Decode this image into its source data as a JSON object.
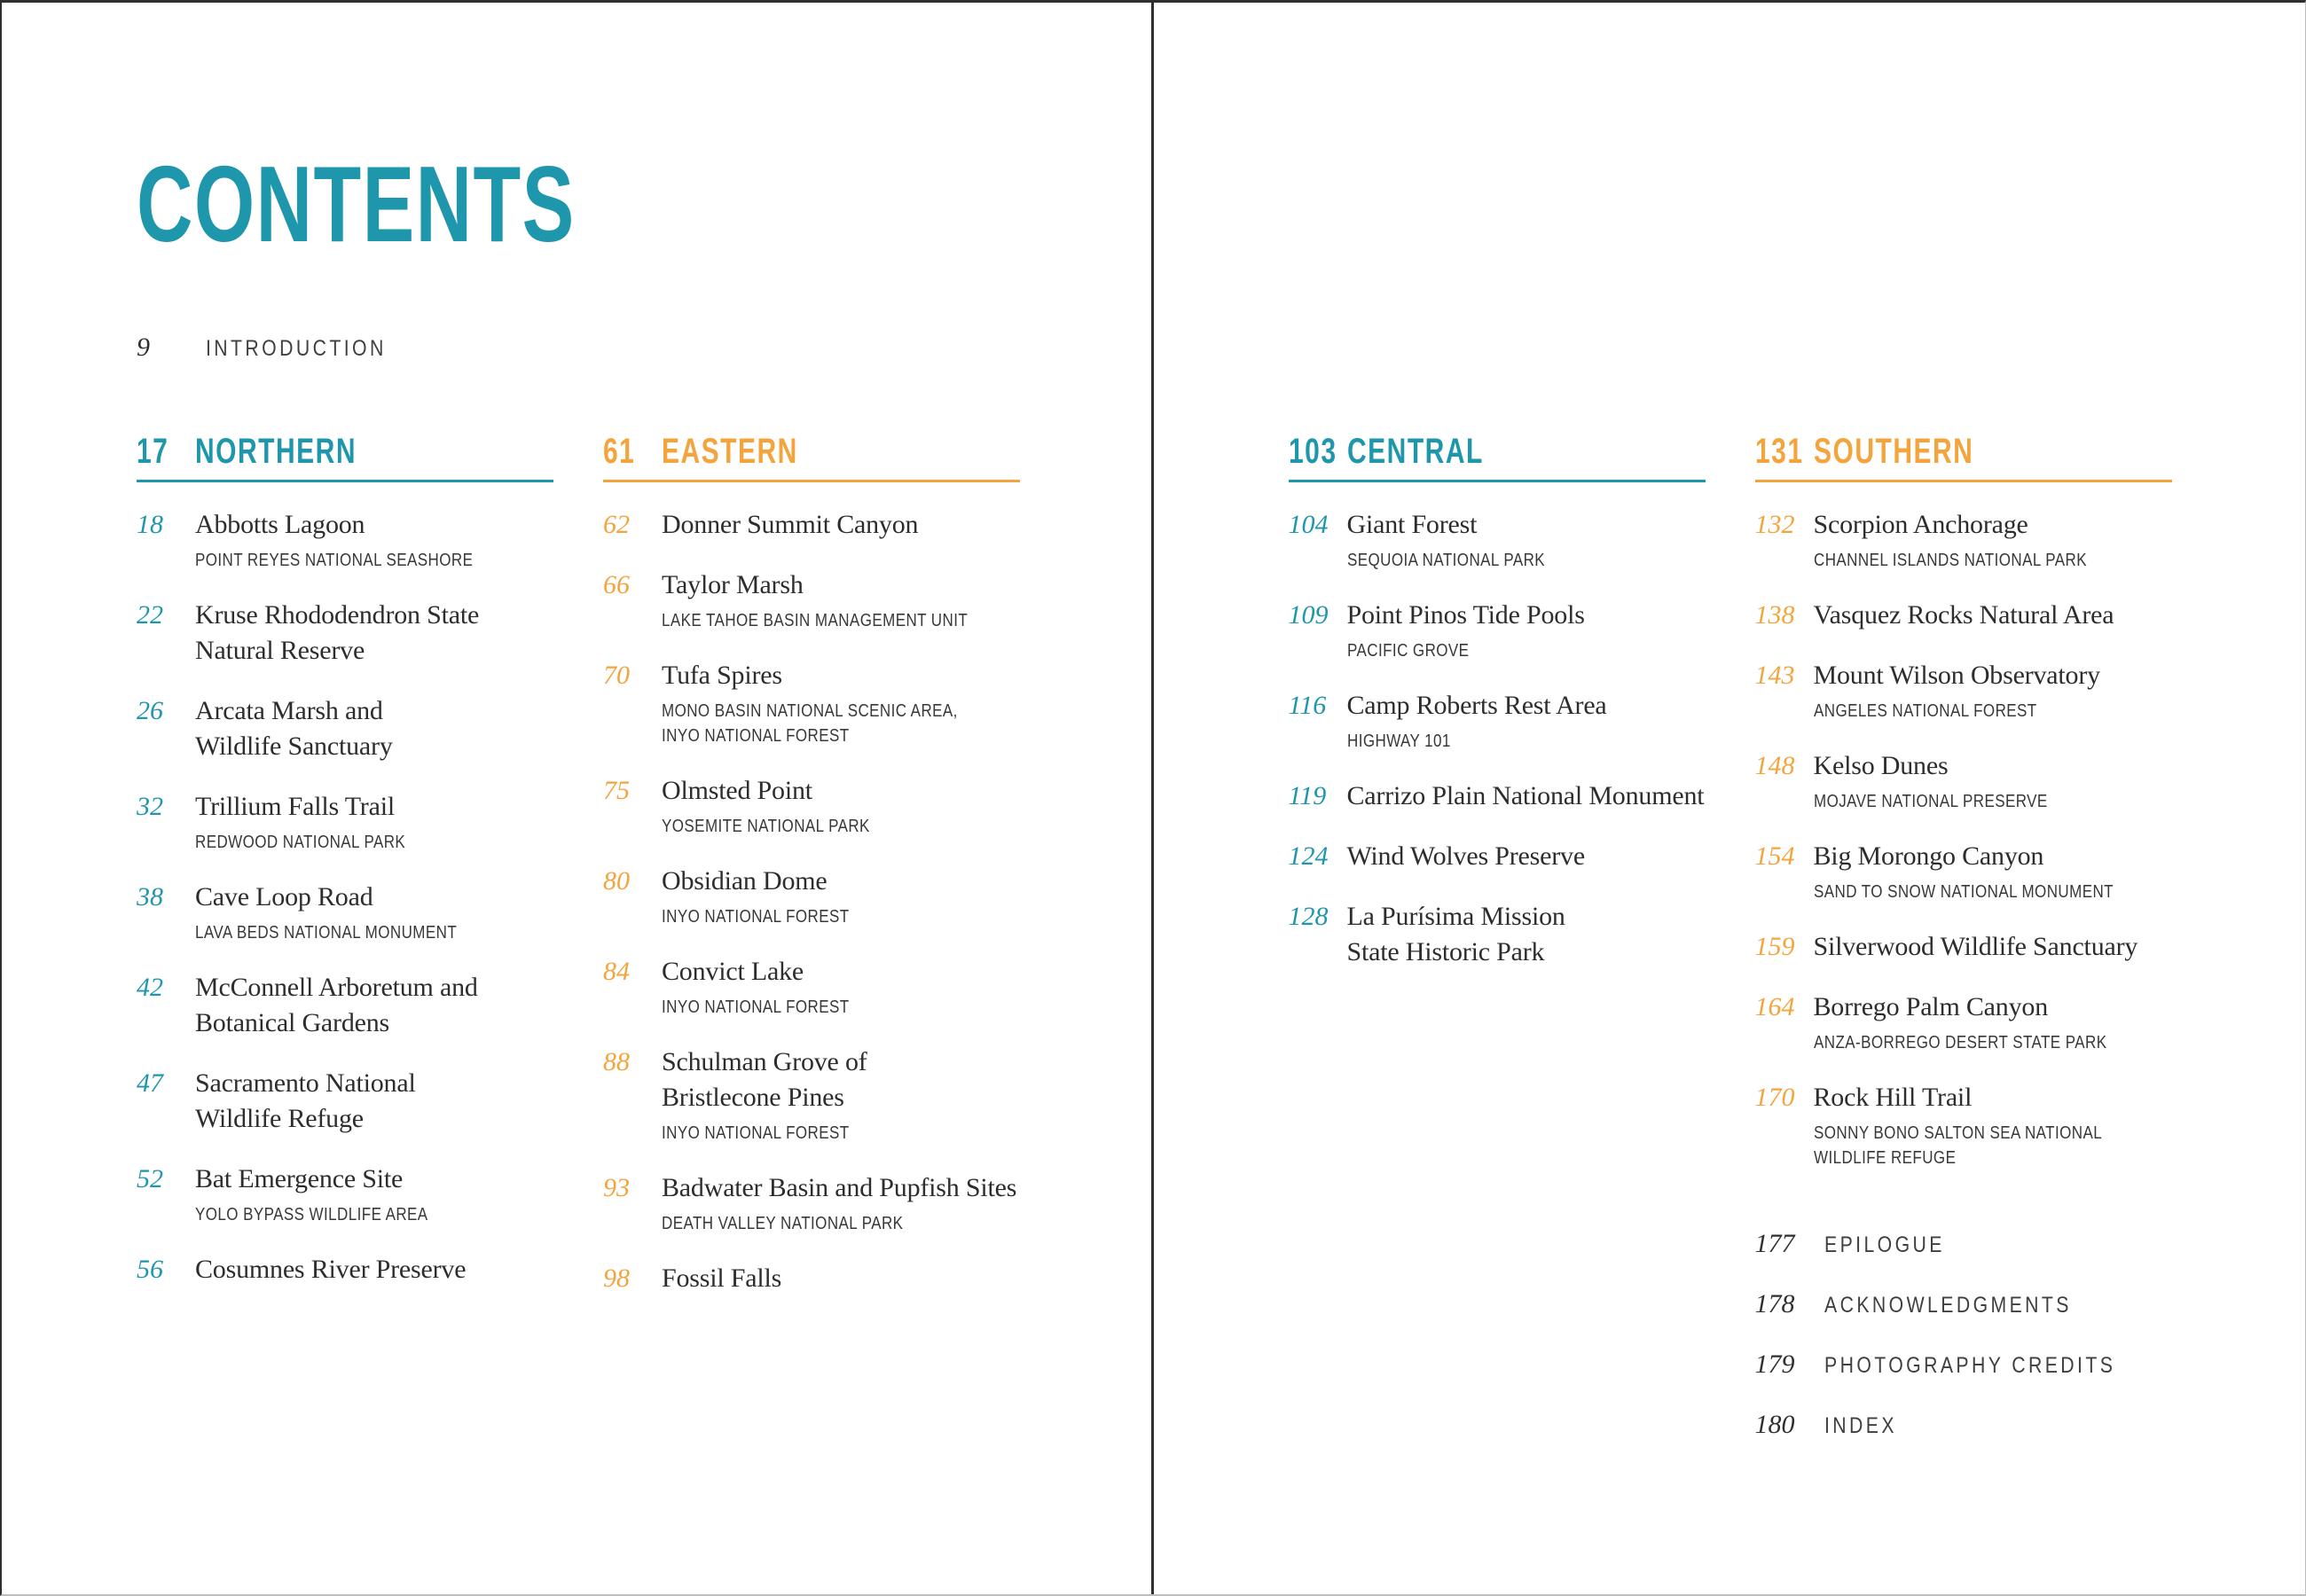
{
  "page_title": "CONTENTS",
  "colors": {
    "teal": "#1E96AB",
    "orange": "#F4A43C"
  },
  "intro": {
    "page": "9",
    "label": "INTRODUCTION"
  },
  "sections": [
    {
      "page": "17",
      "title": "NORTHERN",
      "accent": "teal",
      "entries": [
        {
          "page": "18",
          "title_lines": [
            "Abbotts Lagoon"
          ],
          "subtitle_lines": [
            "POINT REYES NATIONAL SEASHORE"
          ]
        },
        {
          "page": "22",
          "title_lines": [
            "Kruse Rhododendron State",
            "Natural Reserve"
          ],
          "subtitle_lines": []
        },
        {
          "page": "26",
          "title_lines": [
            "Arcata Marsh and",
            "Wildlife Sanctuary"
          ],
          "subtitle_lines": []
        },
        {
          "page": "32",
          "title_lines": [
            "Trillium Falls Trail"
          ],
          "subtitle_lines": [
            "REDWOOD NATIONAL PARK"
          ]
        },
        {
          "page": "38",
          "title_lines": [
            "Cave Loop Road"
          ],
          "subtitle_lines": [
            "LAVA BEDS NATIONAL MONUMENT"
          ]
        },
        {
          "page": "42",
          "title_lines": [
            "McConnell Arboretum and",
            "Botanical Gardens"
          ],
          "subtitle_lines": []
        },
        {
          "page": "47",
          "title_lines": [
            "Sacramento National",
            "Wildlife Refuge"
          ],
          "subtitle_lines": []
        },
        {
          "page": "52",
          "title_lines": [
            "Bat Emergence Site"
          ],
          "subtitle_lines": [
            "YOLO BYPASS WILDLIFE AREA"
          ]
        },
        {
          "page": "56",
          "title_lines": [
            "Cosumnes River Preserve"
          ],
          "subtitle_lines": []
        }
      ]
    },
    {
      "page": "61",
      "title": "EASTERN",
      "accent": "orange",
      "entries": [
        {
          "page": "62",
          "title_lines": [
            "Donner Summit Canyon"
          ],
          "subtitle_lines": []
        },
        {
          "page": "66",
          "title_lines": [
            "Taylor Marsh"
          ],
          "subtitle_lines": [
            "LAKE TAHOE BASIN MANAGEMENT UNIT"
          ]
        },
        {
          "page": "70",
          "title_lines": [
            "Tufa Spires"
          ],
          "subtitle_lines": [
            "MONO BASIN NATIONAL SCENIC AREA,",
            "INYO NATIONAL FOREST"
          ]
        },
        {
          "page": "75",
          "title_lines": [
            "Olmsted Point"
          ],
          "subtitle_lines": [
            "YOSEMITE NATIONAL PARK"
          ]
        },
        {
          "page": "80",
          "title_lines": [
            "Obsidian Dome"
          ],
          "subtitle_lines": [
            "INYO NATIONAL FOREST"
          ]
        },
        {
          "page": "84",
          "title_lines": [
            "Convict Lake"
          ],
          "subtitle_lines": [
            "INYO NATIONAL FOREST"
          ]
        },
        {
          "page": "88",
          "title_lines": [
            "Schulman Grove of",
            "Bristlecone Pines"
          ],
          "subtitle_lines": [
            "INYO NATIONAL FOREST"
          ]
        },
        {
          "page": "93",
          "title_lines": [
            "Badwater Basin and Pupfish Sites"
          ],
          "subtitle_lines": [
            "DEATH VALLEY NATIONAL PARK"
          ]
        },
        {
          "page": "98",
          "title_lines": [
            "Fossil Falls"
          ],
          "subtitle_lines": []
        }
      ]
    },
    {
      "page": "103",
      "title": "CENTRAL",
      "accent": "teal",
      "entries": [
        {
          "page": "104",
          "title_lines": [
            "Giant Forest"
          ],
          "subtitle_lines": [
            "SEQUOIA NATIONAL PARK"
          ]
        },
        {
          "page": "109",
          "title_lines": [
            "Point Pinos Tide Pools"
          ],
          "subtitle_lines": [
            "PACIFIC GROVE"
          ]
        },
        {
          "page": "116",
          "title_lines": [
            "Camp Roberts Rest Area"
          ],
          "subtitle_lines": [
            "HIGHWAY 101"
          ]
        },
        {
          "page": "119",
          "title_lines": [
            "Carrizo Plain National Monument"
          ],
          "subtitle_lines": []
        },
        {
          "page": "124",
          "title_lines": [
            "Wind Wolves Preserve"
          ],
          "subtitle_lines": []
        },
        {
          "page": "128",
          "title_lines": [
            "La Purísima Mission",
            "State Historic Park"
          ],
          "subtitle_lines": []
        }
      ]
    },
    {
      "page": "131",
      "title": "SOUTHERN",
      "accent": "orange",
      "entries": [
        {
          "page": "132",
          "title_lines": [
            "Scorpion Anchorage"
          ],
          "subtitle_lines": [
            "CHANNEL ISLANDS NATIONAL PARK"
          ]
        },
        {
          "page": "138",
          "title_lines": [
            "Vasquez Rocks Natural Area"
          ],
          "subtitle_lines": []
        },
        {
          "page": "143",
          "title_lines": [
            "Mount Wilson Observatory"
          ],
          "subtitle_lines": [
            "ANGELES NATIONAL FOREST"
          ]
        },
        {
          "page": "148",
          "title_lines": [
            "Kelso Dunes"
          ],
          "subtitle_lines": [
            "MOJAVE NATIONAL PRESERVE"
          ]
        },
        {
          "page": "154",
          "title_lines": [
            "Big Morongo Canyon"
          ],
          "subtitle_lines": [
            "SAND TO SNOW NATIONAL MONUMENT"
          ]
        },
        {
          "page": "159",
          "title_lines": [
            "Silverwood Wildlife Sanctuary"
          ],
          "subtitle_lines": []
        },
        {
          "page": "164",
          "title_lines": [
            "Borrego Palm Canyon"
          ],
          "subtitle_lines": [
            "ANZA-BORREGO DESERT STATE PARK"
          ]
        },
        {
          "page": "170",
          "title_lines": [
            "Rock Hill Trail"
          ],
          "subtitle_lines": [
            "SONNY BONO SALTON SEA NATIONAL",
            "WILDLIFE REFUGE"
          ]
        }
      ]
    }
  ],
  "end_matter": [
    {
      "page": "177",
      "label": "EPILOGUE"
    },
    {
      "page": "178",
      "label": "ACKNOWLEDGMENTS"
    },
    {
      "page": "179",
      "label": "PHOTOGRAPHY CREDITS"
    },
    {
      "page": "180",
      "label": "INDEX"
    }
  ]
}
